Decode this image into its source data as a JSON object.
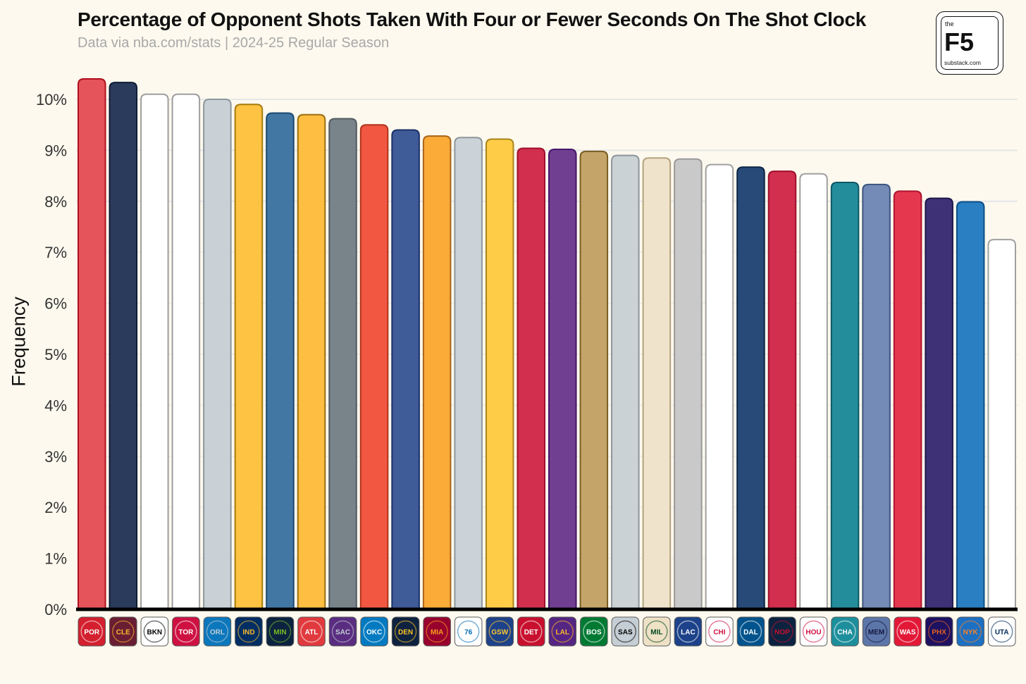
{
  "title": "Percentage of Opponent Shots Taken With Four or Fewer Seconds On The Shot Clock",
  "subtitle": "Data via nba.com/stats | 2024-25 Regular Season",
  "logo": {
    "the": "the",
    "name": "F5",
    "url": "substack.com"
  },
  "chart_data": {
    "type": "bar",
    "title": "Percentage of Opponent Shots Taken With Four or Fewer Seconds On The Shot Clock",
    "subtitle": "Data via nba.com/stats | 2024-25 Regular Season",
    "xlabel": "",
    "ylabel": "Frequency",
    "ylim": [
      0,
      10.5
    ],
    "y_ticks": [
      "0%",
      "1%",
      "2%",
      "3%",
      "4%",
      "5%",
      "6%",
      "7%",
      "8%",
      "9%",
      "10%"
    ],
    "grid": "horizontal",
    "categories": [
      "Trail Blazers",
      "Cavaliers",
      "Nets",
      "Raptors",
      "Magic",
      "Pacers",
      "Timberwolves",
      "Hawks",
      "Kings",
      "Thunder",
      "Nuggets",
      "Heat",
      "76ers",
      "Warriors",
      "Pistons",
      "Lakers",
      "Celtics",
      "Spurs",
      "Bucks",
      "Clippers",
      "Bulls",
      "Mavericks",
      "Pelicans",
      "Rockets",
      "Hornets",
      "Grizzlies",
      "Wizards",
      "Suns",
      "Knicks",
      "Jazz"
    ],
    "values": [
      10.4,
      10.33,
      10.1,
      10.1,
      10.0,
      9.9,
      9.73,
      9.7,
      9.62,
      9.5,
      9.4,
      9.28,
      9.25,
      9.22,
      9.04,
      9.02,
      8.98,
      8.9,
      8.85,
      8.83,
      8.72,
      8.67,
      8.59,
      8.54,
      8.37,
      8.33,
      8.2,
      8.06,
      7.99,
      7.25
    ],
    "bar_fills": [
      "#e5535b",
      "#2a3b5c",
      "#ffffff",
      "#ffffff",
      "#c9d1d7",
      "#fec342",
      "#4277a4",
      "#fdbe41",
      "#79838a",
      "#f15741",
      "#3f5b98",
      "#faab38",
      "#cbd3d8",
      "#fecc47",
      "#d12f4d",
      "#713f92",
      "#c4a469",
      "#cbd2d6",
      "#efe3cb",
      "#c9c9c9",
      "#ffffff",
      "#284a78",
      "#d12f4d",
      "#ffffff",
      "#248d9c",
      "#748ab7",
      "#e5384f",
      "#3e3176",
      "#2a7fc2",
      "#ffffff"
    ],
    "bar_strokes": [
      "#b0101e",
      "#0f1b33",
      "#9e9e9e",
      "#9e9e9e",
      "#8d969c",
      "#a57b0d",
      "#1b4a73",
      "#9c6f12",
      "#535b62",
      "#b3321c",
      "#1b2f66",
      "#a8651a",
      "#8d969c",
      "#a8861a",
      "#9e0f2b",
      "#46176a",
      "#7a5d22",
      "#8d969c",
      "#b4a27d",
      "#9a9a9a",
      "#a0a0a0",
      "#0d2747",
      "#9e0f2b",
      "#a0a0a0",
      "#0d5764",
      "#3e5480",
      "#b01530",
      "#1e164a",
      "#0d4f85",
      "#a0a0a0"
    ],
    "logo_abbr": [
      "POR",
      "CLE",
      "BKN",
      "TOR",
      "ORL",
      "IND",
      "MIN",
      "ATL",
      "SAC",
      "OKC",
      "DEN",
      "MIA",
      "76",
      "GSW",
      "DET",
      "LAL",
      "BOS",
      "SAS",
      "MIL",
      "LAC",
      "CHI",
      "DAL",
      "NOP",
      "HOU",
      "CHA",
      "MEM",
      "WAS",
      "PHX",
      "NYK",
      "UTA"
    ],
    "logo_bg": [
      "#d31f2e",
      "#6a1e33",
      "#ffffff",
      "#ce1141",
      "#0b77bd",
      "#002d62",
      "#0c2340",
      "#e03a3e",
      "#5a2d81",
      "#007ac1",
      "#0e2240",
      "#98002e",
      "#ffffff",
      "#1d428a",
      "#c8102e",
      "#552583",
      "#007a33",
      "#c4ced4",
      "#eee1c6",
      "#1d428a",
      "#ffffff",
      "#00538c",
      "#0c2340",
      "#ffffff",
      "#1d8f9c",
      "#5d76a9",
      "#e31837",
      "#1d1160",
      "#1d70c2",
      "#ffffff"
    ],
    "logo_fg": [
      "#ffffff",
      "#fdbb30",
      "#000000",
      "#ffffff",
      "#c4ced4",
      "#fdbb30",
      "#78be20",
      "#ffffff",
      "#c4ced4",
      "#ffffff",
      "#fec524",
      "#f9a01b",
      "#006bb6",
      "#ffc72c",
      "#ffffff",
      "#fdb927",
      "#ffffff",
      "#000000",
      "#00471b",
      "#ffffff",
      "#ce1141",
      "#ffffff",
      "#c8102e",
      "#ce1141",
      "#ffffff",
      "#12173f",
      "#ffffff",
      "#e56020",
      "#f58426",
      "#002b5c"
    ]
  }
}
